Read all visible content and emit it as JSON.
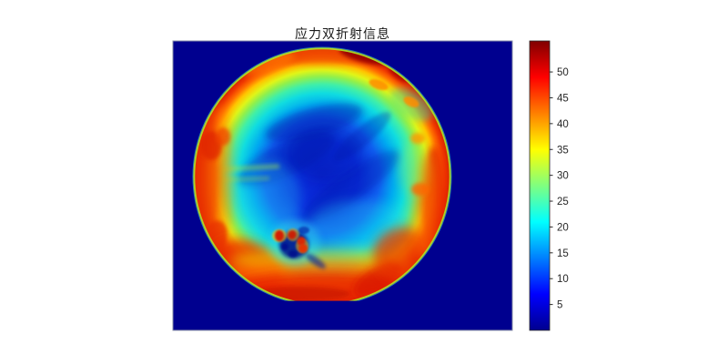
{
  "title": "应力双折射信息",
  "chart_data": {
    "type": "heatmap",
    "title": "应力双折射信息",
    "colormap": "jet",
    "colormap_stops": [
      {
        "offset": 0.0,
        "color": "#00008F"
      },
      {
        "offset": 0.125,
        "color": "#0000FF"
      },
      {
        "offset": 0.375,
        "color": "#00FFFF"
      },
      {
        "offset": 0.625,
        "color": "#FFFF00"
      },
      {
        "offset": 0.875,
        "color": "#FF0000"
      },
      {
        "offset": 1.0,
        "color": "#800000"
      }
    ],
    "color_axis_range": [
      0,
      56
    ],
    "colorbar_ticks": [
      5,
      10,
      15,
      20,
      25,
      30,
      35,
      40,
      45,
      50
    ],
    "background_value_color": "#00008F",
    "legend_position": "right-colorbar",
    "axes_visible": false,
    "description": {
      "subject": "Circular wafer stress-birefringence map (jet colormap) on uniform dark-blue background",
      "edge_region": "high stress ring ~40-55, red/dark-red, thicker on left and bottom rims, dark-red patch at top-right rim",
      "mid_region": "transition bands ~20-35: yellow, green, cyan moving inward",
      "center_region": "low stress ~5-12, blue with darker marbled streaks",
      "defect_cluster": "small cluster near lower-center-left with red hot spots (~50) and dark-blue low spots (~5) surrounded by cyan",
      "wafer_flat": "flattened chord at the bottom edge of the disc with thin bright cyan-yellow line"
    }
  }
}
